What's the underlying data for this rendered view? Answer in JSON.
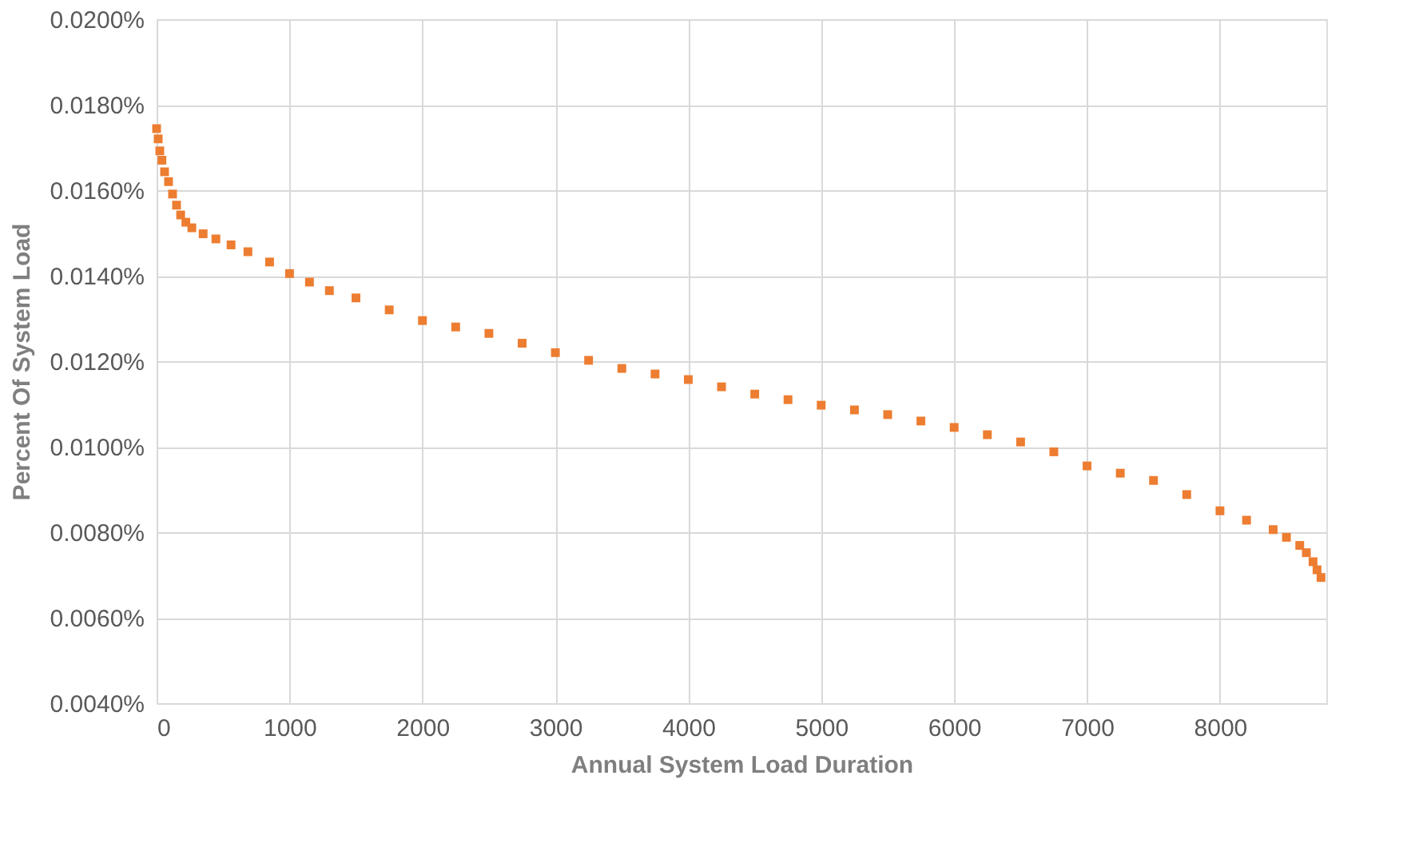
{
  "chart_data": {
    "type": "scatter",
    "xlabel": "Annual System Load Duration",
    "ylabel": "Percent Of System Load",
    "xlim": [
      0,
      8800
    ],
    "xticks": [
      0,
      1000,
      2000,
      3000,
      4000,
      5000,
      6000,
      7000,
      8000
    ],
    "ylim": [
      0.004,
      0.02
    ],
    "yticks": [
      {
        "value": 0.004,
        "label": "0.0040%"
      },
      {
        "value": 0.006,
        "label": "0.0060%"
      },
      {
        "value": 0.008,
        "label": "0.0080%"
      },
      {
        "value": 0.01,
        "label": "0.0100%"
      },
      {
        "value": 0.012,
        "label": "0.0120%"
      },
      {
        "value": 0.014,
        "label": "0.0140%"
      },
      {
        "value": 0.016,
        "label": "0.0160%"
      },
      {
        "value": 0.018,
        "label": "0.0180%"
      },
      {
        "value": 0.02,
        "label": "0.0200%"
      }
    ],
    "grid": true,
    "marker": "square",
    "series": [
      {
        "color": "#ed7d31",
        "x": [
          0,
          12,
          24,
          40,
          60,
          90,
          120,
          150,
          181,
          220,
          265,
          350,
          446,
          560,
          687,
          850,
          1000,
          1150,
          1300,
          1500,
          1750,
          2000,
          2250,
          2500,
          2750,
          3000,
          3250,
          3500,
          3750,
          4000,
          4250,
          4500,
          4750,
          5000,
          5250,
          5500,
          5750,
          6000,
          6250,
          6500,
          6750,
          7000,
          7250,
          7500,
          7750,
          8000,
          8200,
          8400,
          8500,
          8600,
          8650,
          8700,
          8730,
          8760
        ],
        "values": [
          0.01744,
          0.0172,
          0.01692,
          0.0167,
          0.01643,
          0.0162,
          0.01591,
          0.01565,
          0.01542,
          0.01525,
          0.01512,
          0.01498,
          0.01486,
          0.01472,
          0.01456,
          0.01432,
          0.01405,
          0.01385,
          0.01365,
          0.01348,
          0.0132,
          0.01295,
          0.0128,
          0.01265,
          0.01242,
          0.0122,
          0.01202,
          0.01183,
          0.0117,
          0.01157,
          0.0114,
          0.01123,
          0.0111,
          0.01097,
          0.01086,
          0.01075,
          0.0106,
          0.01045,
          0.01028,
          0.01011,
          0.00988,
          0.00955,
          0.00938,
          0.00921,
          0.00888,
          0.0085,
          0.00828,
          0.00806,
          0.00788,
          0.00769,
          0.00752,
          0.00731,
          0.00712,
          0.00694
        ]
      }
    ]
  }
}
